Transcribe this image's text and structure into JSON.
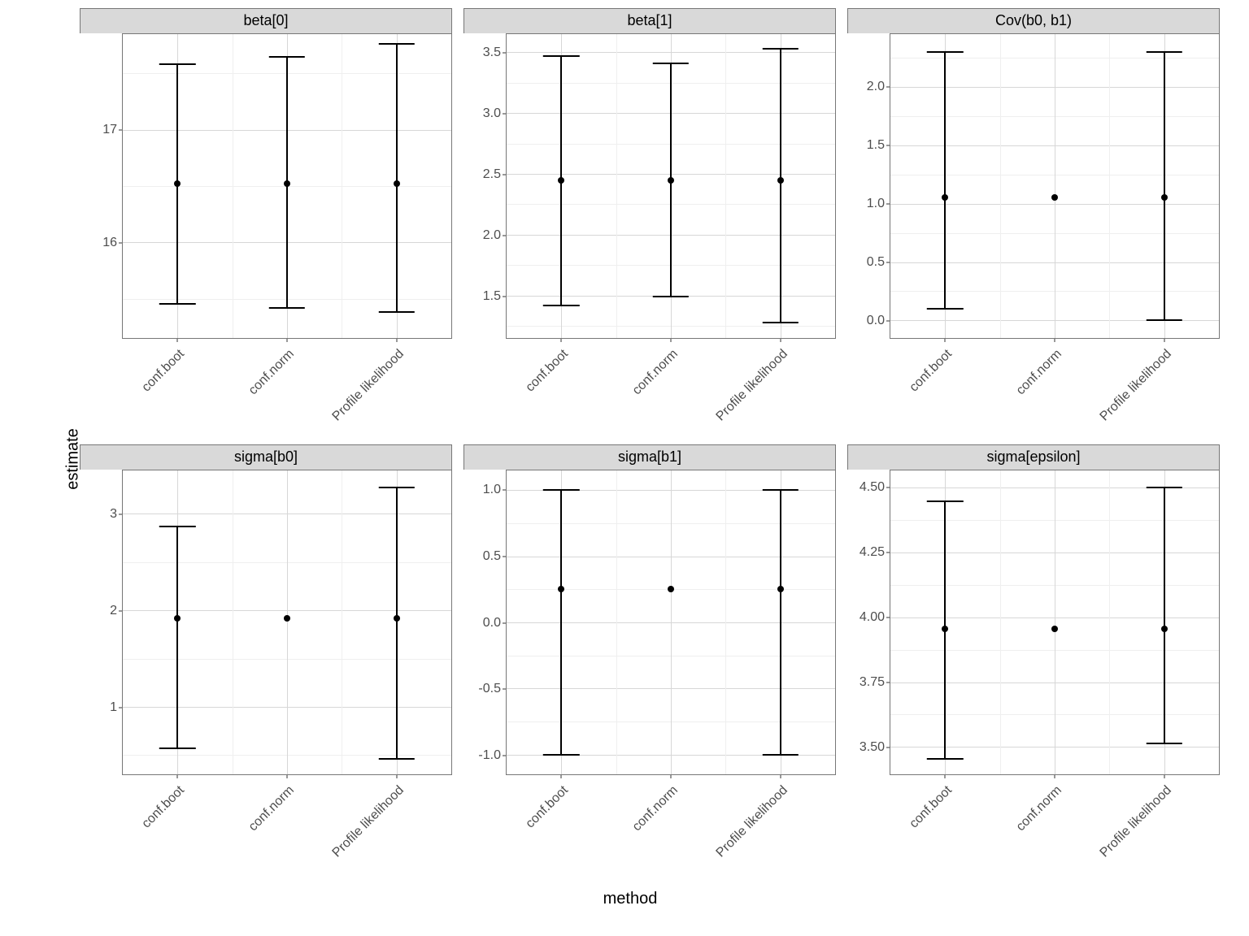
{
  "figure": {
    "ylab": "estimate",
    "xlab": "method",
    "background": "#ffffff",
    "panel_border_color": "#777777",
    "strip_background": "#d9d9d9",
    "grid_major_color": "#d7d7d7",
    "grid_minor_color": "#efefef",
    "tick_label_color": "#4d4d4d",
    "axis_title_color": "#000000",
    "point_color": "#000000",
    "error_bar_width": 0.11,
    "x_categories": [
      "conf.boot",
      "conf.norm",
      "Profile likelihood"
    ],
    "x_positions": [
      0.167,
      0.5,
      0.833
    ],
    "x_minor_positions": [
      0.333,
      0.667
    ],
    "panels": [
      {
        "title": "beta[0]",
        "ylim": [
          15.15,
          17.85
        ],
        "yticks": [
          16,
          17
        ],
        "yminor": [
          15.5,
          16.5,
          17.5
        ],
        "points": [
          {
            "x": 0,
            "est": 16.52,
            "lo": 15.45,
            "hi": 17.58
          },
          {
            "x": 1,
            "est": 16.52,
            "lo": 15.42,
            "hi": 17.65
          },
          {
            "x": 2,
            "est": 16.52,
            "lo": 15.38,
            "hi": 17.76
          }
        ]
      },
      {
        "title": "beta[1]",
        "ylim": [
          1.15,
          3.65
        ],
        "yticks": [
          1.5,
          2.0,
          2.5,
          3.0,
          3.5
        ],
        "yminor": [
          1.25,
          1.75,
          2.25,
          2.75,
          3.25
        ],
        "points": [
          {
            "x": 0,
            "est": 2.45,
            "lo": 1.42,
            "hi": 3.47
          },
          {
            "x": 1,
            "est": 2.45,
            "lo": 1.49,
            "hi": 3.41
          },
          {
            "x": 2,
            "est": 2.45,
            "lo": 1.28,
            "hi": 3.53
          }
        ]
      },
      {
        "title": "Cov(b0, b1)",
        "ylim": [
          -0.15,
          2.45
        ],
        "yticks": [
          0.0,
          0.5,
          1.0,
          1.5,
          2.0
        ],
        "yminor": [
          0.25,
          0.75,
          1.25,
          1.75,
          2.25
        ],
        "points": [
          {
            "x": 0,
            "est": 1.05,
            "lo": 0.1,
            "hi": 2.3
          },
          {
            "x": 1,
            "est": 1.05,
            "lo": null,
            "hi": null
          },
          {
            "x": 2,
            "est": 1.05,
            "lo": 0.0,
            "hi": 2.3
          }
        ]
      },
      {
        "title": "sigma[b0]",
        "ylim": [
          0.3,
          3.45
        ],
        "yticks": [
          1,
          2,
          3
        ],
        "yminor": [
          0.5,
          1.5,
          2.5
        ],
        "points": [
          {
            "x": 0,
            "est": 1.92,
            "lo": 0.57,
            "hi": 2.87
          },
          {
            "x": 1,
            "est": 1.92,
            "lo": null,
            "hi": null
          },
          {
            "x": 2,
            "est": 1.92,
            "lo": 0.46,
            "hi": 3.27
          }
        ]
      },
      {
        "title": "sigma[b1]",
        "ylim": [
          -1.15,
          1.15
        ],
        "yticks": [
          -1.0,
          -0.5,
          0.0,
          0.5,
          1.0
        ],
        "yminor": [
          -0.75,
          -0.25,
          0.25,
          0.75
        ],
        "points": [
          {
            "x": 0,
            "est": 0.25,
            "lo": -1.0,
            "hi": 1.0
          },
          {
            "x": 1,
            "est": 0.25,
            "lo": null,
            "hi": null
          },
          {
            "x": 2,
            "est": 0.25,
            "lo": -1.0,
            "hi": 1.0
          }
        ]
      },
      {
        "title": "sigma[epsilon]",
        "ylim": [
          3.395,
          4.565
        ],
        "yticks": [
          3.5,
          3.75,
          4.0,
          4.25,
          4.5
        ],
        "yminor": [
          3.625,
          3.875,
          4.125,
          4.375
        ],
        "points": [
          {
            "x": 0,
            "est": 3.955,
            "lo": 3.455,
            "hi": 4.445
          },
          {
            "x": 1,
            "est": 3.955,
            "lo": null,
            "hi": null
          },
          {
            "x": 2,
            "est": 3.955,
            "lo": 3.515,
            "hi": 4.5
          }
        ]
      }
    ]
  }
}
